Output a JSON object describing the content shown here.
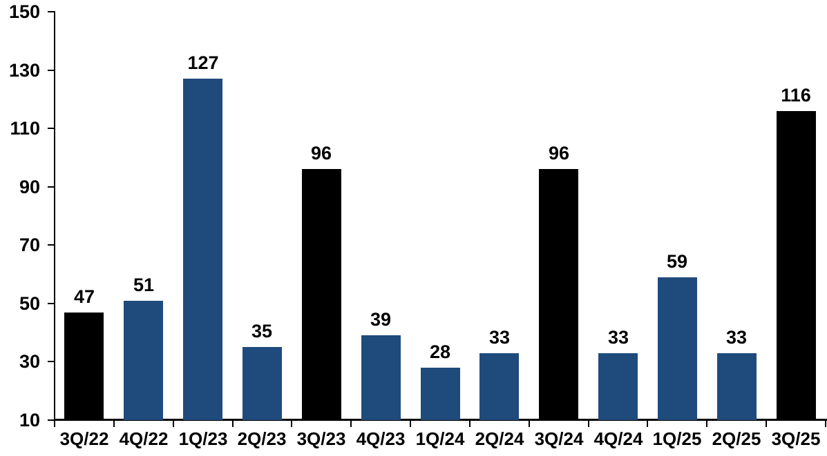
{
  "chart_data": {
    "type": "bar",
    "title": "",
    "xlabel": "",
    "ylabel": "",
    "categories": [
      "3Q/22",
      "4Q/22",
      "1Q/23",
      "2Q/23",
      "3Q/23",
      "4Q/23",
      "1Q/24",
      "2Q/24",
      "3Q/24",
      "4Q/24",
      "1Q/25",
      "2Q/25",
      "3Q/25"
    ],
    "values": [
      47,
      51,
      127,
      35,
      96,
      39,
      28,
      33,
      96,
      33,
      59,
      33,
      116
    ],
    "bar_colors": [
      "#000000",
      "#1F4B7C",
      "#1F4B7C",
      "#1F4B7C",
      "#000000",
      "#1F4B7C",
      "#1F4B7C",
      "#1F4B7C",
      "#000000",
      "#1F4B7C",
      "#1F4B7C",
      "#1F4B7C",
      "#000000"
    ],
    "data_labels_visible": true,
    "ylim": [
      10,
      150
    ],
    "yticks": [
      10,
      30,
      50,
      70,
      90,
      110,
      130,
      150
    ],
    "grid": false,
    "legend_position": "none",
    "colors": {
      "highlight_bar": "#000000",
      "primary_bar": "#1F4B7C",
      "axis": "#000000",
      "text": "#000000",
      "background": "#FFFFFF"
    }
  }
}
